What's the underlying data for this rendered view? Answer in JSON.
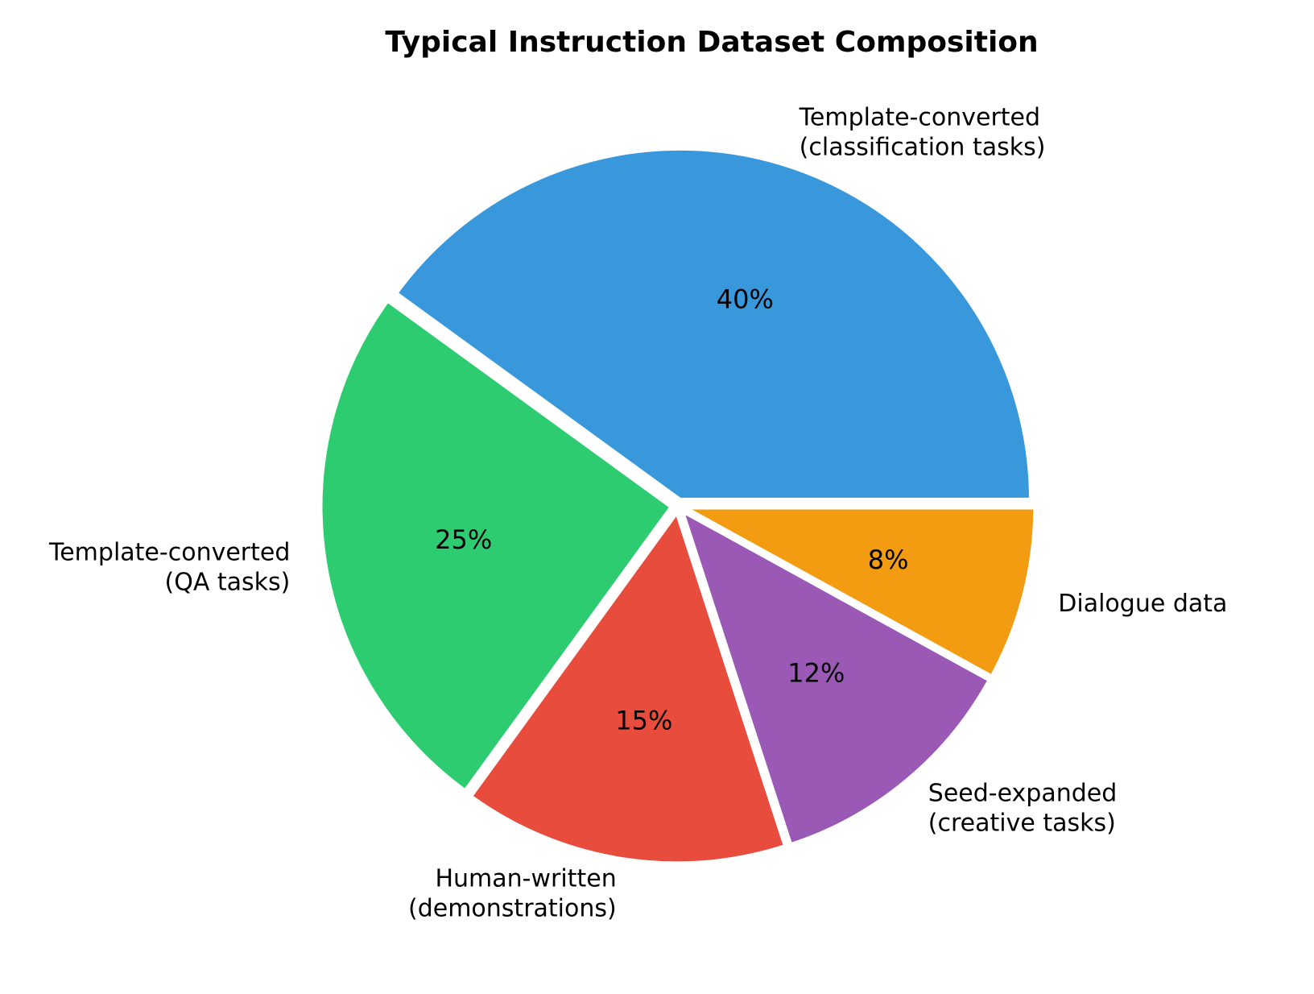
{
  "chart_data": {
    "type": "pie",
    "title": "Typical Instruction Dataset Composition",
    "start_angle_deg": 0,
    "direction": "counterclockwise",
    "exploded": true,
    "slices": [
      {
        "label_lines": [
          "Template-converted",
          "(classification tasks)"
        ],
        "value": 40,
        "pct_text": "40%",
        "color": "#3898DB"
      },
      {
        "label_lines": [
          "Template-converted",
          "(QA tasks)"
        ],
        "value": 25,
        "pct_text": "25%",
        "color": "#2ECC71"
      },
      {
        "label_lines": [
          "Human-written",
          "(demonstrations)"
        ],
        "value": 15,
        "pct_text": "15%",
        "color": "#E74C3C"
      },
      {
        "label_lines": [
          "Seed-expanded",
          "(creative tasks)"
        ],
        "value": 12,
        "pct_text": "12%",
        "color": "#9B59B6"
      },
      {
        "label_lines": [
          "Dialogue data"
        ],
        "value": 8,
        "pct_text": "8%",
        "color": "#F39C12"
      }
    ]
  }
}
